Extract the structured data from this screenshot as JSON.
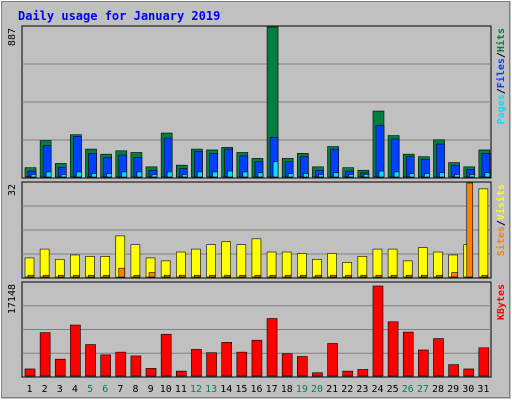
{
  "chart_data": [
    {
      "type": "bar",
      "panel": "hits-files-pages",
      "title": "Daily usage for January 2019",
      "categories": [
        "1",
        "2",
        "3",
        "4",
        "5",
        "6",
        "7",
        "8",
        "9",
        "10",
        "11",
        "12",
        "13",
        "14",
        "15",
        "16",
        "17",
        "18",
        "19",
        "20",
        "21",
        "22",
        "23",
        "24",
        "25",
        "26",
        "27",
        "28",
        "29",
        "30",
        "31"
      ],
      "weekend_categories": [
        "5",
        "6",
        "12",
        "13",
        "19",
        "20",
        "26",
        "27"
      ],
      "ymax_label": "887",
      "ylim": [
        0,
        887
      ],
      "ylabel_parts": [
        "Pages",
        "/",
        "Files",
        "/",
        "Hits"
      ],
      "series": [
        {
          "name": "Hits",
          "color": "#008040",
          "values": [
            55,
            215,
            80,
            250,
            165,
            135,
            155,
            145,
            60,
            260,
            70,
            165,
            160,
            175,
            145,
            110,
            887,
            110,
            140,
            60,
            180,
            55,
            40,
            390,
            245,
            135,
            120,
            220,
            85,
            60,
            160
          ]
        },
        {
          "name": "Files",
          "color": "#0040FF",
          "values": [
            35,
            185,
            55,
            240,
            140,
            115,
            130,
            115,
            40,
            230,
            50,
            150,
            140,
            165,
            125,
            90,
            235,
            90,
            120,
            40,
            165,
            35,
            25,
            305,
            225,
            120,
            105,
            195,
            70,
            45,
            140
          ]
        },
        {
          "name": "Pages",
          "color": "#00E0FF",
          "values": [
            15,
            30,
            15,
            30,
            20,
            20,
            30,
            30,
            15,
            30,
            15,
            30,
            30,
            35,
            30,
            25,
            90,
            20,
            20,
            15,
            25,
            15,
            15,
            35,
            30,
            20,
            20,
            25,
            15,
            15,
            25
          ]
        }
      ]
    },
    {
      "type": "bar",
      "panel": "visits-sites",
      "categories": [
        "1",
        "2",
        "3",
        "4",
        "5",
        "6",
        "7",
        "8",
        "9",
        "10",
        "11",
        "12",
        "13",
        "14",
        "15",
        "16",
        "17",
        "18",
        "19",
        "20",
        "21",
        "22",
        "23",
        "24",
        "25",
        "26",
        "27",
        "28",
        "29",
        "30",
        "31"
      ],
      "ymax_label": "32",
      "ylim": [
        0,
        32
      ],
      "ylabel_parts": [
        "Sites",
        "/",
        "Visits"
      ],
      "series": [
        {
          "name": "Visits",
          "color": "#FFFF00",
          "values": [
            6.5,
            9.5,
            6.0,
            7.5,
            7.0,
            7.0,
            14.0,
            11.0,
            6.5,
            5.5,
            8.5,
            9.5,
            11.0,
            12.0,
            11.0,
            13.0,
            8.5,
            8.5,
            8.0,
            6.0,
            8.0,
            5.0,
            7.0,
            9.5,
            9.5,
            5.5,
            10.0,
            8.5,
            7.5,
            11.0,
            30.0
          ]
        },
        {
          "name": "Sites",
          "color": "#FF8000",
          "values": [
            0.6,
            0.6,
            0.6,
            0.6,
            0.6,
            0.6,
            3.0,
            0.6,
            1.5,
            0.6,
            0.6,
            0.6,
            0.6,
            0.6,
            0.6,
            0.6,
            0.6,
            0.6,
            0.6,
            0.6,
            0.6,
            0.6,
            0.6,
            0.6,
            0.6,
            0.6,
            0.6,
            0.6,
            1.5,
            32.0,
            0.6
          ]
        }
      ]
    },
    {
      "type": "bar",
      "panel": "kbytes",
      "categories": [
        "1",
        "2",
        "3",
        "4",
        "5",
        "6",
        "7",
        "8",
        "9",
        "10",
        "11",
        "12",
        "13",
        "14",
        "15",
        "16",
        "17",
        "18",
        "19",
        "20",
        "21",
        "22",
        "23",
        "24",
        "25",
        "26",
        "27",
        "28",
        "29",
        "30",
        "31"
      ],
      "ymax_label": "17148",
      "ylim": [
        0,
        17148
      ],
      "ylabel_parts": [
        "KBytes"
      ],
      "series": [
        {
          "name": "KBytes",
          "color": "#FF0000",
          "values": [
            1300,
            8000,
            3100,
            9400,
            5800,
            3900,
            4400,
            3700,
            1400,
            7700,
            900,
            4900,
            4300,
            6200,
            4400,
            6600,
            10600,
            4100,
            3600,
            600,
            6000,
            900,
            1200,
            16600,
            10000,
            8100,
            4800,
            6900,
            2100,
            1300,
            5200
          ]
        }
      ]
    }
  ],
  "colors": {
    "background": "#C0C0C0",
    "plot_bg": "#C0C0C0",
    "border_dark": "#808080",
    "title": "#0000FF",
    "weekday_label": "#000000",
    "weekend_label": "#00805C",
    "grid": "#808080"
  }
}
